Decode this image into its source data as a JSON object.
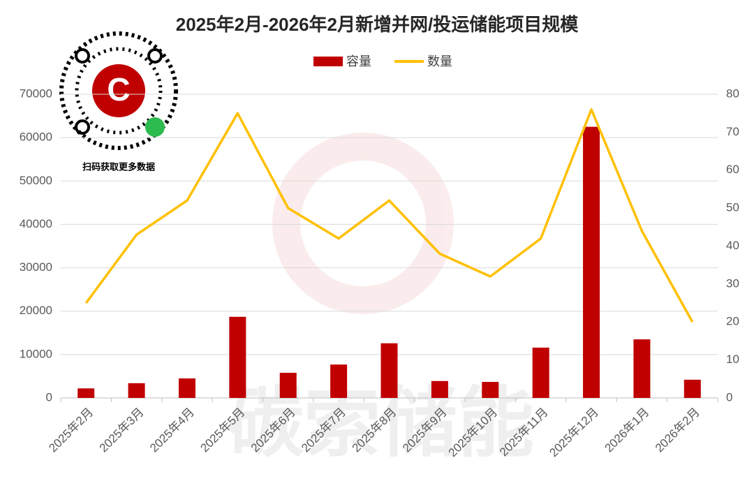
{
  "chart_data": {
    "type": "bar-line",
    "title": "2025年2月-2026年2月新增并网/投运储能项目规模",
    "qr_caption": "扫码获取更多数据",
    "watermark": "碳索储能",
    "categories": [
      "2025年2月",
      "2025年3月",
      "2025年4月",
      "2025年5月",
      "2025年6月",
      "2025年7月",
      "2025年8月",
      "2025年9月",
      "2025年10月",
      "2025年11月",
      "2025年12月",
      "2026年1月",
      "2026年2月"
    ],
    "series": [
      {
        "name": "容量",
        "type": "bar",
        "color": "#c00000",
        "axis": "y",
        "values": [
          2200,
          3400,
          4500,
          18700,
          5800,
          7700,
          12600,
          3900,
          3700,
          11600,
          62500,
          13500,
          4200
        ]
      },
      {
        "name": "数量",
        "type": "line",
        "color": "#ffc000",
        "axis": "y2",
        "values": [
          25,
          43,
          52,
          75,
          50,
          42,
          52,
          38,
          32,
          42,
          76,
          44,
          20
        ]
      }
    ],
    "ylim": [
      0,
      70000
    ],
    "yticks": [
      0,
      10000,
      20000,
      30000,
      40000,
      50000,
      60000,
      70000
    ],
    "y2lim": [
      0,
      80
    ],
    "y2ticks": [
      0,
      10,
      20,
      30,
      40,
      50,
      60,
      70,
      80
    ],
    "grid": true,
    "legend": "top"
  }
}
